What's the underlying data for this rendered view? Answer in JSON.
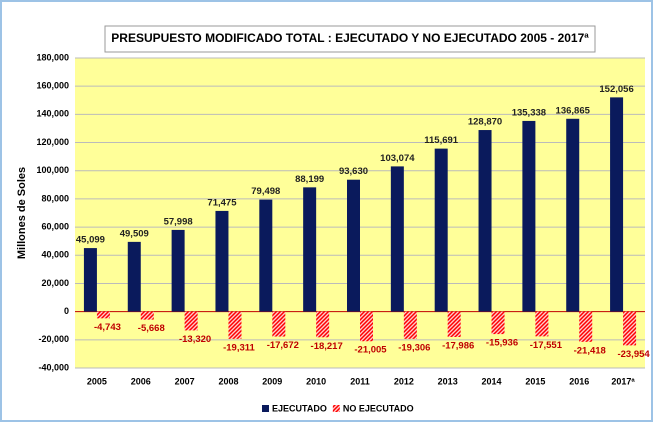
{
  "chart_data": {
    "type": "bar",
    "title": "PRESUPUESTO MODIFICADO TOTAL : EJECUTADO Y NO EJECUTADO 2005 - 2017ª",
    "y_label": "Millones de Soles",
    "categories": [
      "2005",
      "2006",
      "2007",
      "2008",
      "2009",
      "2010",
      "2011",
      "2012",
      "2013",
      "2014",
      "2015",
      "2016",
      "2017ª"
    ],
    "series": [
      {
        "name": "EJECUTADO",
        "color": "#0a1a5c",
        "values": [
          45099,
          49509,
          57998,
          71475,
          79498,
          88199,
          93630,
          103074,
          115691,
          128870,
          135338,
          136865,
          152056
        ],
        "value_labels": [
          "45,099",
          "49,509",
          "57,998",
          "71,475",
          "79,498",
          "88,199",
          "93,630",
          "103,074",
          "115,691",
          "128,870",
          "135,338",
          "136,865",
          "152,056"
        ]
      },
      {
        "name": "NO EJECUTADO",
        "color": "#ff0000",
        "values": [
          -4743,
          -5668,
          -13320,
          -19311,
          -17672,
          -18217,
          -21005,
          -19306,
          -17986,
          -15936,
          -17551,
          -21418,
          -23954
        ],
        "value_labels": [
          "-4,743",
          "-5,668",
          "-13,320",
          "-19,311",
          "-17,672",
          "-18,217",
          "-21,005",
          "-19,306",
          "-17,986",
          "-15,936",
          "-17,551",
          "-21,418",
          "-23,954"
        ]
      }
    ],
    "ylim": [
      -40000,
      180000
    ],
    "yticks": [
      {
        "value": -40000,
        "label": "-40,000"
      },
      {
        "value": -20000,
        "label": "-20,000"
      },
      0,
      {
        "value": 20000,
        "label": "20,000"
      },
      {
        "value": 40000,
        "label": "40,000"
      },
      {
        "value": 60000,
        "label": "60,000"
      },
      {
        "value": 80000,
        "label": "80,000"
      },
      {
        "value": 100000,
        "label": "100,000"
      },
      {
        "value": 120000,
        "label": "120,000"
      },
      {
        "value": 140000,
        "label": "140,000"
      },
      {
        "value": 160000,
        "label": "160,000"
      },
      {
        "value": 180000,
        "label": "180,000"
      }
    ],
    "grid": true,
    "legend": "bottom"
  }
}
